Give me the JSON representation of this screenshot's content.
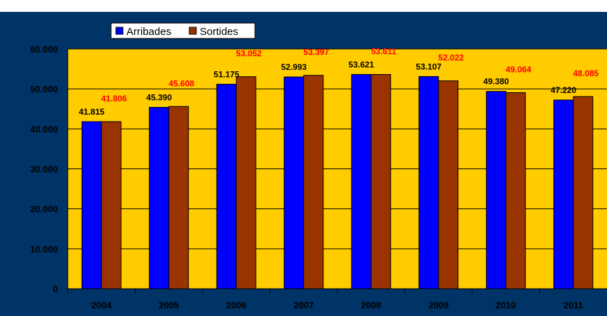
{
  "chart_data": {
    "type": "bar",
    "title": "",
    "categories": [
      "2004",
      "2005",
      "2006",
      "2007",
      "2008",
      "2009",
      "2010",
      "2011"
    ],
    "series": [
      {
        "name": "Arribades",
        "color": "#0000ff",
        "values": [
          41815,
          45390,
          51175,
          52993,
          53621,
          53107,
          49380,
          47220
        ],
        "labels": [
          "41.815",
          "45.390",
          "51.175",
          "52.993",
          "53.621",
          "53.107",
          "49.380",
          "47.220"
        ]
      },
      {
        "name": "Sortides",
        "color": "#993300",
        "values": [
          41806,
          45608,
          53052,
          53397,
          53611,
          52022,
          49064,
          48085
        ],
        "labels": [
          "41.806",
          "45.608",
          "53.052",
          "53.397",
          "53.611",
          "52.022",
          "49.064",
          "48.085"
        ]
      }
    ],
    "ylim": [
      0,
      60000
    ],
    "yticks": [
      0,
      10000,
      20000,
      30000,
      40000,
      50000,
      60000
    ],
    "ytick_labels": [
      "0",
      "10.000",
      "20.000",
      "30.000",
      "40.000",
      "50.000",
      "60.000"
    ],
    "grid": true,
    "legend_position": "top-left",
    "xlabel": "",
    "ylabel": "",
    "background_color": "#003366",
    "plot_area_color": "#ffcc00"
  }
}
